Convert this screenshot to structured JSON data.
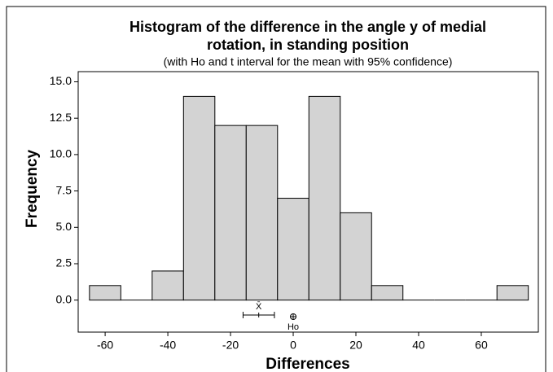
{
  "chart_data": {
    "type": "histogram",
    "title": "Histogram of the difference in the angle y of medial rotation, in standing position",
    "subtitle": "(with Ho and t interval for the mean with 95% confidence)",
    "x_label": "Differences",
    "y_label": "Frequency",
    "bins": [
      -65,
      -55,
      -45,
      -35,
      -25,
      -15,
      -5,
      5,
      15,
      25,
      35,
      45,
      55,
      65,
      75
    ],
    "values": [
      1,
      0,
      2,
      14,
      12,
      12,
      7,
      14,
      6,
      1,
      0,
      0,
      0,
      1
    ],
    "color": "#d3d3d3",
    "xlim": [
      -68.6,
      78.2
    ],
    "xticks": [
      -60,
      -40,
      -20,
      0,
      20,
      40,
      60
    ],
    "ylim": [
      -2.2,
      15.7
    ],
    "yticks": [
      {
        "value": 0,
        "label": "0.0"
      },
      {
        "value": 2.5,
        "label": "2.5"
      },
      {
        "value": 5,
        "label": "5.0"
      },
      {
        "value": 7.5,
        "label": "7.5"
      },
      {
        "value": 10,
        "label": "10.0"
      },
      {
        "value": 12.5,
        "label": "12.5"
      },
      {
        "value": 15,
        "label": "15.0"
      }
    ],
    "mean_interval": {
      "low": -16,
      "mean": -11,
      "high": -6,
      "label": "X̄"
    },
    "h0": {
      "value": 0,
      "label": "Ho"
    }
  }
}
